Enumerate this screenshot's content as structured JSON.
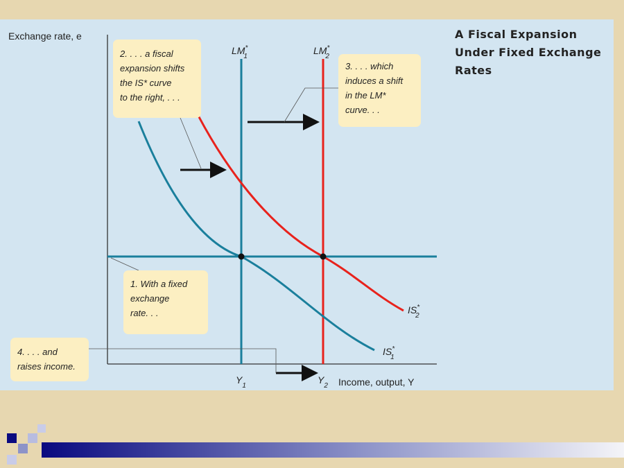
{
  "figure": {
    "title_lines": [
      "A Fiscal Expansion",
      "Under Fixed Exchange",
      "Rates"
    ],
    "y_axis_label": "Exchange rate, e",
    "x_axis_label": "Income, output, Y",
    "curves": {
      "lm1": {
        "base": "LM",
        "sup": "*",
        "sub": "1"
      },
      "lm2": {
        "base": "LM",
        "sup": "*",
        "sub": "2"
      },
      "is1": {
        "base": "IS",
        "sup": "*",
        "sub": "1"
      },
      "is2": {
        "base": "IS",
        "sup": "*",
        "sub": "2"
      },
      "y1": {
        "base": "Y",
        "sub": "1"
      },
      "y2": {
        "base": "Y",
        "sub": "2"
      }
    },
    "notes": {
      "note1": [
        "1. With a fixed",
        "exchange",
        "rate. . ."
      ],
      "note2": [
        "2. . . . a fiscal",
        "expansion shifts",
        "the IS* curve",
        "to the right, . . ."
      ],
      "note3": [
        "3. . . . which",
        "induces a shift",
        "in the LM*",
        "curve. . ."
      ],
      "note4": [
        "4. . . . and",
        "raises income."
      ]
    }
  }
}
